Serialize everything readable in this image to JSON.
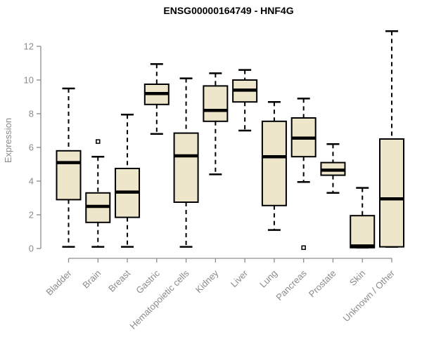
{
  "chart_data": {
    "type": "boxplot",
    "title": "ENSG00000164749 - HNF4G",
    "xlabel": "",
    "ylabel": "Expression",
    "ylim": [
      0,
      13.5
    ],
    "yticks": [
      0,
      2,
      4,
      6,
      8,
      10,
      12
    ],
    "grid": false,
    "legend": false,
    "categories": [
      "Bladder",
      "Brain",
      "Breast",
      "Gastric",
      "Hematopoietic cells",
      "Kidney",
      "Liver",
      "Lung",
      "Pancreas",
      "Prostate",
      "Skin",
      "Unknown / Other"
    ],
    "boxes": [
      {
        "category": "Bladder",
        "low": 0.1,
        "q1": 2.9,
        "median": 5.1,
        "q3": 5.8,
        "high": 9.5,
        "outliers": []
      },
      {
        "category": "Brain",
        "low": 0.1,
        "q1": 1.55,
        "median": 2.5,
        "q3": 3.3,
        "high": 5.45,
        "outliers": [
          6.35
        ]
      },
      {
        "category": "Breast",
        "low": 0.1,
        "q1": 1.85,
        "median": 3.35,
        "q3": 4.75,
        "high": 7.95,
        "outliers": []
      },
      {
        "category": "Gastric",
        "low": 6.8,
        "q1": 8.55,
        "median": 9.2,
        "q3": 9.75,
        "high": 10.95,
        "outliers": []
      },
      {
        "category": "Hematopoietic cells",
        "low": 0.1,
        "q1": 2.75,
        "median": 5.5,
        "q3": 6.85,
        "high": 10.1,
        "outliers": []
      },
      {
        "category": "Kidney",
        "low": 4.4,
        "q1": 7.55,
        "median": 8.2,
        "q3": 9.65,
        "high": 10.4,
        "outliers": []
      },
      {
        "category": "Liver",
        "low": 7.0,
        "q1": 8.7,
        "median": 9.4,
        "q3": 10.0,
        "high": 10.6,
        "outliers": []
      },
      {
        "category": "Lung",
        "low": 1.1,
        "q1": 2.55,
        "median": 5.45,
        "q3": 7.55,
        "high": 8.7,
        "outliers": []
      },
      {
        "category": "Pancreas",
        "low": 3.95,
        "q1": 5.45,
        "median": 6.55,
        "q3": 7.75,
        "high": 8.9,
        "outliers": [
          0.05
        ]
      },
      {
        "category": "Prostate",
        "low": 3.3,
        "q1": 4.35,
        "median": 4.65,
        "q3": 5.1,
        "high": 6.2,
        "outliers": []
      },
      {
        "category": "Skin",
        "low": 0.05,
        "q1": 0.05,
        "median": 0.15,
        "q3": 1.95,
        "high": 3.6,
        "outliers": []
      },
      {
        "category": "Unknown / Other",
        "low": 0.1,
        "q1": 0.1,
        "median": 2.95,
        "q3": 6.5,
        "high": 12.9,
        "outliers": []
      }
    ],
    "colors": {
      "background": "#ffffff",
      "title": "#000000",
      "axis": "#8c8c8c",
      "tick_text": "#8b8b8b",
      "box_fill": "#ede6cb",
      "box_border": "#000000",
      "median": "#000000",
      "whisker": "#000000",
      "outlier_fill": "#ffffff",
      "outlier_border": "#000000"
    }
  }
}
